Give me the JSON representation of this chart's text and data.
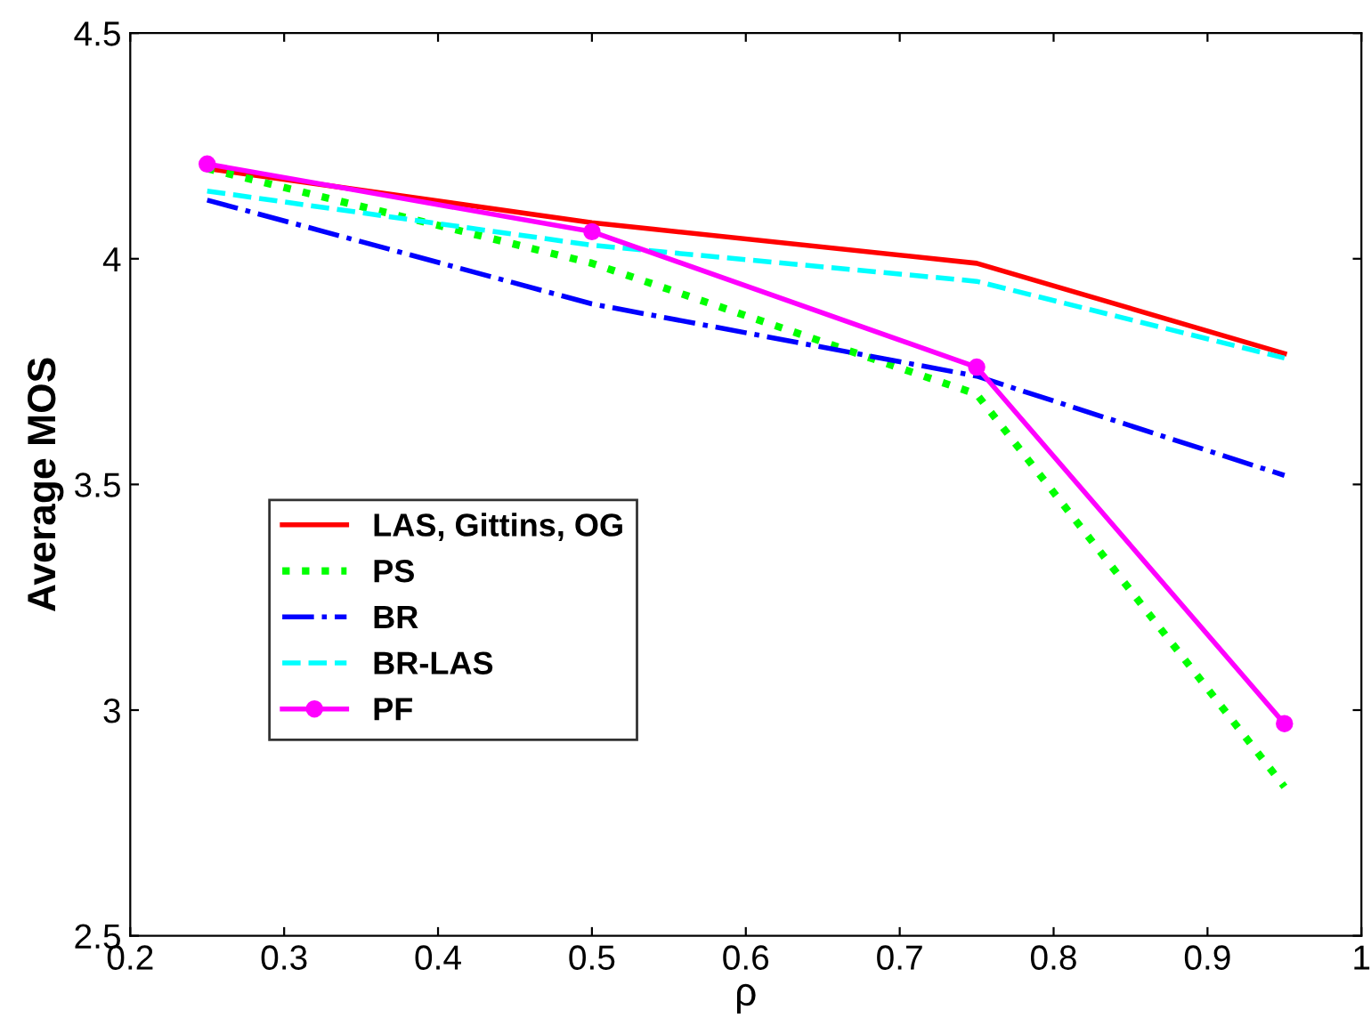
{
  "chart_data": {
    "type": "line",
    "xlabel": "ρ",
    "ylabel": "Average MOS",
    "x": [
      0.25,
      0.5,
      0.75,
      0.95
    ],
    "xlim": [
      0.2,
      1
    ],
    "xticks": [
      0.2,
      0.3,
      0.4,
      0.5,
      0.6,
      0.7,
      0.8,
      0.9,
      1
    ],
    "ylim": [
      2.5,
      4.5
    ],
    "yticks": [
      2.5,
      3,
      3.5,
      4,
      4.5
    ],
    "grid": false,
    "legend": "left",
    "series": [
      {
        "name": "LAS, Gittins, OG",
        "color": "#ff0000",
        "values": [
          4.2,
          4.08,
          3.99,
          3.79
        ],
        "line_style": "solid",
        "marker": "none"
      },
      {
        "name": "PS",
        "color": "#00ff00",
        "values": [
          4.2,
          3.99,
          3.7,
          2.83
        ],
        "line_style": "dotted",
        "marker": "none"
      },
      {
        "name": "BR",
        "color": "#0000ff",
        "values": [
          4.13,
          3.9,
          3.74,
          3.52
        ],
        "line_style": "dashdot",
        "marker": "none"
      },
      {
        "name": "BR-LAS",
        "color": "#00ffff",
        "values": [
          4.15,
          4.03,
          3.95,
          3.78
        ],
        "line_style": "dashed",
        "marker": "none"
      },
      {
        "name": "PF",
        "color": "#ff00ff",
        "values": [
          4.21,
          4.06,
          3.76,
          2.97
        ],
        "line_style": "solid",
        "marker": "circle"
      }
    ]
  }
}
